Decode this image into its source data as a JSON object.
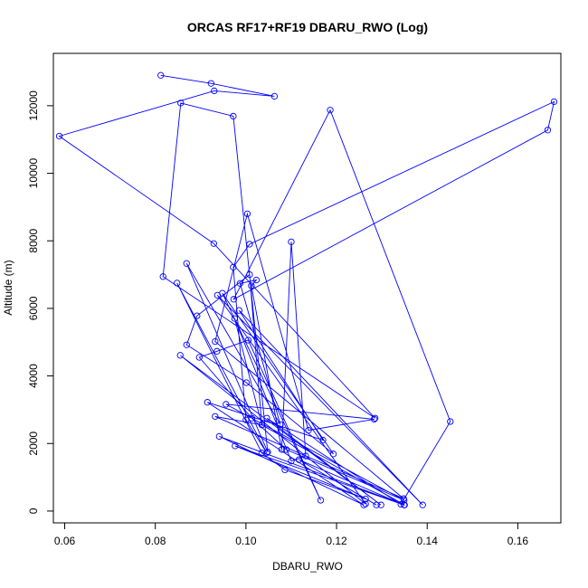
{
  "chart_data": {
    "type": "line",
    "title": "ORCAS RF17+RF19 DBARU_RWO (Log)",
    "xlabel": "DBARU_RWO",
    "ylabel": "Altitude (m)",
    "xlim": [
      0.0575,
      0.1695
    ],
    "ylim": [
      -350,
      13550
    ],
    "xticks": [
      0.06,
      0.08,
      0.1,
      0.12,
      0.14,
      0.16
    ],
    "xtick_labels": [
      "0.06",
      "0.08",
      "0.10",
      "0.12",
      "0.14",
      "0.16"
    ],
    "yticks": [
      0,
      2000,
      4000,
      6000,
      8000,
      10000,
      12000
    ],
    "ytick_labels": [
      "0",
      "2000",
      "4000",
      "6000",
      "8000",
      "10000",
      "12000"
    ],
    "grid": false,
    "marker": "open-circle",
    "color": "#0000ff",
    "series": [
      {
        "x": [
          0.0812,
          0.0923,
          0.1063,
          0.093,
          0.0588,
          0.0929,
          0.1285,
          0.0817,
          0.0856,
          0.0972,
          0.1048,
          0.0869,
          0.1076,
          0.0987,
          0.1023,
          0.1012,
          0.1079,
          0.11,
          0.1132,
          0.11,
          0.0975,
          0.1035,
          0.1008,
          0.0892,
          0.0869,
          0.1001,
          0.1193,
          0.0948,
          0.1165,
          0.1005,
          0.0936,
          0.0897,
          0.1013,
          0.1089,
          0.1349,
          0.0956,
          0.1283,
          0.1138,
          0.1003,
          0.0932,
          0.1348,
          0.0932,
          0.1035,
          0.135,
          0.0941,
          0.126,
          0.0915,
          0.117,
          0.0985,
          0.139,
          0.0937,
          0.1264,
          0.0855,
          0.1298,
          0.1046,
          0.1342,
          0.1451,
          0.1186,
          0.0973,
          0.1666,
          0.168,
          0.1008,
          0.0972,
          0.1,
          0.1046,
          0.0848,
          0.1035,
          0.1086,
          0.1264,
          0.0976,
          0.1349,
          0.1117,
          0.1288
        ]
      }
    ],
    "series_y": [
      12900,
      12660,
      12280,
      12440,
      11100,
      7920,
      2750,
      6940,
      12080,
      11690,
      1750,
      7330,
      2560,
      6740,
      6840,
      6670,
      1820,
      7970,
      1630,
      1480,
      5700,
      2550,
      7000,
      5780,
      4920,
      3800,
      1690,
      6450,
      320,
      5060,
      4730,
      4550,
      2750,
      1820,
      320,
      3160,
      2720,
      2390,
      8800,
      5020,
      370,
      2800,
      2550,
      180,
      2210,
      180,
      3220,
      2100,
      5940,
      180,
      6390,
      210,
      4610,
      180,
      2750,
      200,
      2650,
      11870,
      6270,
      11280,
      12120,
      7900,
      7220,
      2700,
      1720,
      6750,
      1720,
      1220,
      360,
      1930,
      180,
      1520,
      180
    ]
  }
}
